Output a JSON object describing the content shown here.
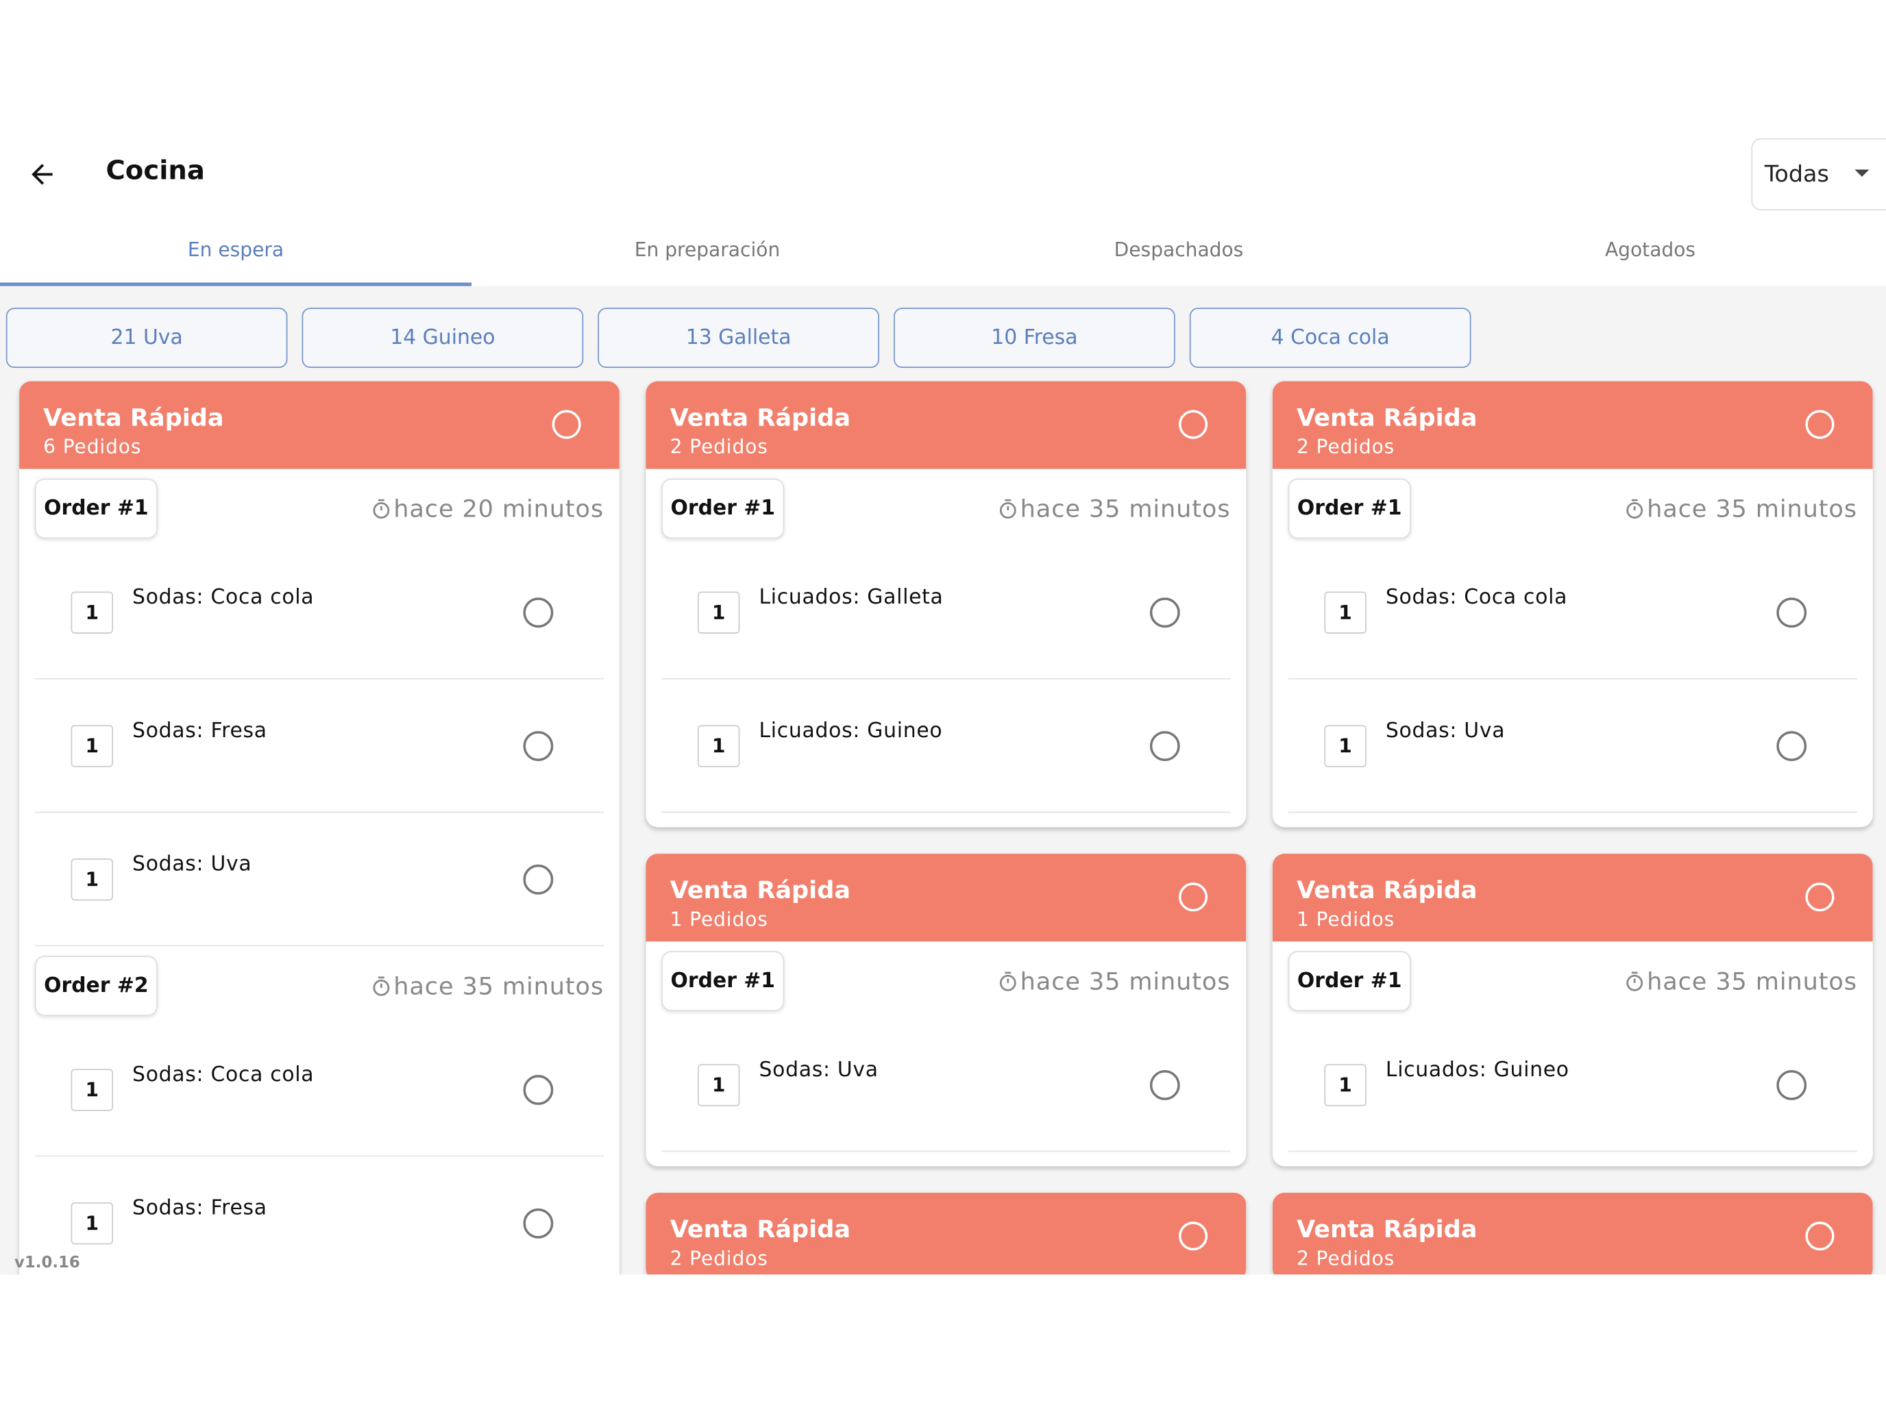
{
  "header": {
    "title": "Cocina",
    "filter": "Todas"
  },
  "tabs": [
    "En espera",
    "En preparación",
    "Despachados",
    "Agotados"
  ],
  "chips": [
    "21 Uva",
    "14 Guineo",
    "13 Galleta",
    "10 Fresa",
    "4 Coca cola"
  ],
  "columns": [
    {
      "cards": [
        {
          "title": "Venta Rápida",
          "subtitle": "6 Pedidos",
          "orders": [
            {
              "label": "Order #1",
              "time": "hace 20 minutos",
              "items": [
                {
                  "qty": 1,
                  "name": "Sodas: Coca cola"
                },
                {
                  "qty": 1,
                  "name": "Sodas: Fresa"
                },
                {
                  "qty": 1,
                  "name": "Sodas: Uva"
                }
              ]
            },
            {
              "label": "Order #2",
              "time": "hace 35 minutos",
              "items": [
                {
                  "qty": 1,
                  "name": "Sodas: Coca cola"
                },
                {
                  "qty": 1,
                  "name": "Sodas: Fresa"
                }
              ]
            }
          ]
        }
      ]
    },
    {
      "cards": [
        {
          "title": "Venta Rápida",
          "subtitle": "2 Pedidos",
          "orders": [
            {
              "label": "Order #1",
              "time": "hace 35 minutos",
              "items": [
                {
                  "qty": 1,
                  "name": "Licuados: Galleta"
                },
                {
                  "qty": 1,
                  "name": "Licuados: Guineo"
                }
              ]
            }
          ]
        },
        {
          "title": "Venta Rápida",
          "subtitle": "1 Pedidos",
          "orders": [
            {
              "label": "Order #1",
              "time": "hace 35 minutos",
              "items": [
                {
                  "qty": 1,
                  "name": "Sodas: Uva"
                }
              ]
            }
          ]
        },
        {
          "title": "Venta Rápida",
          "subtitle": "2 Pedidos",
          "orders": []
        }
      ]
    },
    {
      "cards": [
        {
          "title": "Venta Rápida",
          "subtitle": "2 Pedidos",
          "orders": [
            {
              "label": "Order #1",
              "time": "hace 35 minutos",
              "items": [
                {
                  "qty": 1,
                  "name": "Sodas: Coca cola"
                },
                {
                  "qty": 1,
                  "name": "Sodas: Uva"
                }
              ]
            }
          ]
        },
        {
          "title": "Venta Rápida",
          "subtitle": "1 Pedidos",
          "orders": [
            {
              "label": "Order #1",
              "time": "hace 35 minutos",
              "items": [
                {
                  "qty": 1,
                  "name": "Licuados: Guineo"
                }
              ]
            }
          ]
        },
        {
          "title": "Venta Rápida",
          "subtitle": "2 Pedidos",
          "orders": []
        }
      ]
    }
  ],
  "version": "v1.0.16"
}
